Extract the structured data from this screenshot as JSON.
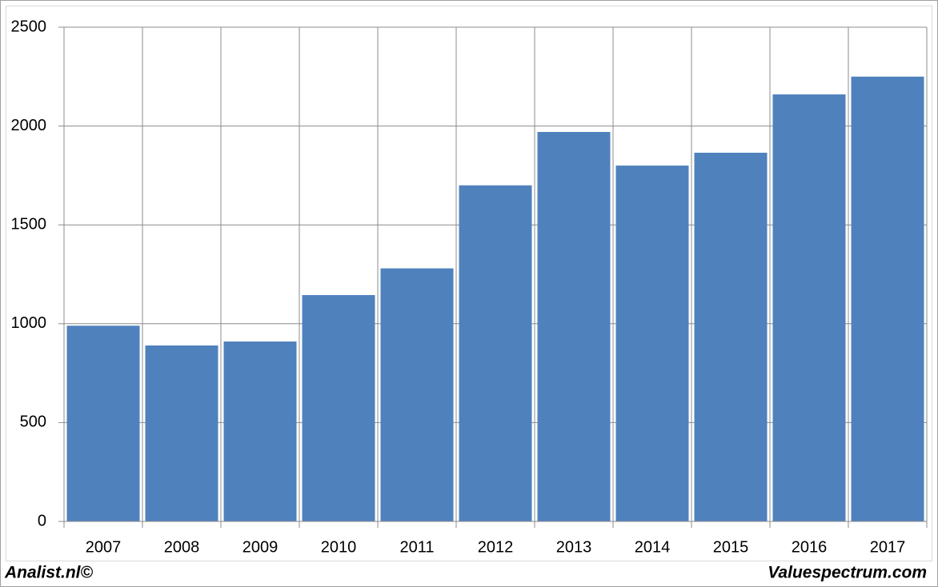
{
  "chart_data": {
    "type": "bar",
    "categories": [
      "2007",
      "2008",
      "2009",
      "2010",
      "2011",
      "2012",
      "2013",
      "2014",
      "2015",
      "2016",
      "2017"
    ],
    "values": [
      990,
      890,
      910,
      1145,
      1280,
      1700,
      1970,
      1800,
      1865,
      2160,
      2250
    ],
    "color": "#4f81bd",
    "ylim": [
      0,
      2500
    ],
    "yticks": [
      0,
      500,
      1000,
      1500,
      2000,
      2500
    ],
    "grid": true,
    "credits": [
      "Analist.nl©",
      "Valuespectrum.com"
    ]
  }
}
